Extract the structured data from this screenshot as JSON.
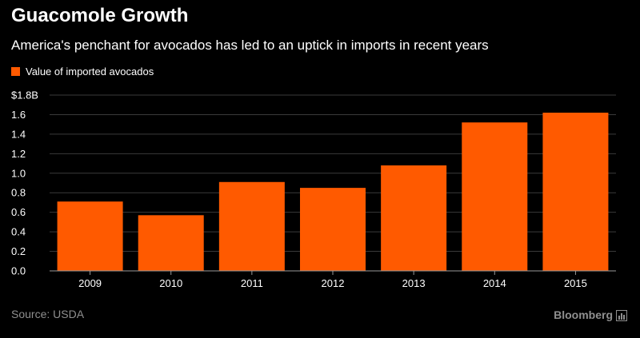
{
  "title": "Guacomole Growth",
  "subtitle": "America's penchant for avocados has led to an uptick in imports in recent years",
  "source": "Source: USDA",
  "brand": "Bloomberg",
  "colors": {
    "bar": "#ff5a00",
    "background": "#000000",
    "grid": "#3a3a3a",
    "axis": "#9a9a9a",
    "text_muted": "#8f8f8f"
  },
  "chart_data": {
    "type": "bar",
    "title": "Guacomole Growth",
    "subtitle": "America's penchant for avocados has led to an uptick in imports in recent years",
    "categories": [
      "2009",
      "2010",
      "2011",
      "2012",
      "2013",
      "2014",
      "2015"
    ],
    "series": [
      {
        "name": "Value of imported avocados",
        "values": [
          0.71,
          0.57,
          0.91,
          0.85,
          1.08,
          1.52,
          1.62
        ]
      }
    ],
    "ylim": [
      0,
      1.8
    ],
    "yticks": [
      0,
      0.2,
      0.4,
      0.6,
      0.8,
      1.0,
      1.2,
      1.4,
      1.6,
      1.8
    ],
    "ytick_labels": [
      "0.0",
      "0.2",
      "0.4",
      "0.6",
      "0.8",
      "1.0",
      "1.2",
      "1.4",
      "1.6",
      "$1.8B"
    ],
    "grid": true,
    "legend_position": "top-left",
    "xlabel": "",
    "ylabel": ""
  }
}
